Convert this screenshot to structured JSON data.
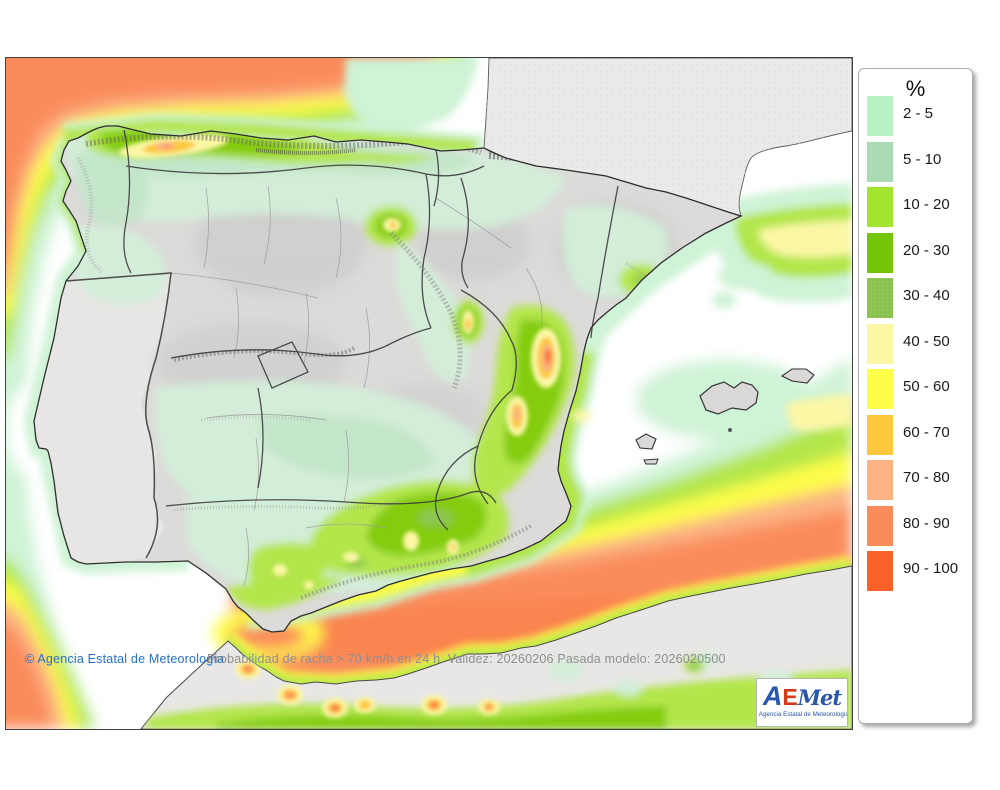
{
  "legend": {
    "title": "%",
    "items": [
      {
        "label": "2 - 5",
        "color": "#b9f2c3"
      },
      {
        "label": "5 - 10",
        "color": "#abdbb4"
      },
      {
        "label": "10 - 20",
        "color": "#a2e52e"
      },
      {
        "label": "20 - 30",
        "color": "#74c408"
      },
      {
        "label": "30 - 40",
        "color": "#8ec653"
      },
      {
        "label": "40 - 50",
        "color": "#fbf7a5"
      },
      {
        "label": "50 - 60",
        "color": "#fdfd4a"
      },
      {
        "label": "60 - 70",
        "color": "#fdc83e"
      },
      {
        "label": "70 - 80",
        "color": "#fbb383"
      },
      {
        "label": "80 - 90",
        "color": "#fa8c5b"
      },
      {
        "label": "90 - 100",
        "color": "#f96126"
      }
    ]
  },
  "footer": {
    "copyright": "© Agencia Estatal de Meteorología",
    "info": "Probabilidad de racha > 70 km/h en 24 h. Validez: 20260206 Pasada modelo: 2026020500"
  },
  "logo": {
    "a": "A",
    "e": "E",
    "met": "Met",
    "subtitle": "Agencia Estatal de Meteorología"
  }
}
